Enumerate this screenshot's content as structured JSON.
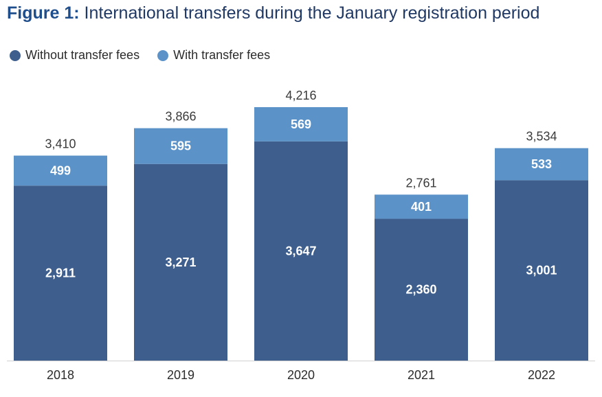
{
  "title": {
    "prefix": "Figure 1:",
    "text": "International transfers during the January registration period"
  },
  "colors": {
    "without_fees": "#3e5f8e",
    "with_fees": "#5b93c9",
    "title_accent": "#1f4e8c"
  },
  "chart_data": {
    "type": "bar",
    "stacked": true,
    "categories": [
      "2018",
      "2019",
      "2020",
      "2021",
      "2022"
    ],
    "series": [
      {
        "name": "Without transfer fees",
        "values": [
          2911,
          3271,
          3647,
          2360,
          3001
        ]
      },
      {
        "name": "With transfer fees",
        "values": [
          499,
          595,
          569,
          401,
          533
        ]
      }
    ],
    "totals": [
      3410,
      3866,
      4216,
      2761,
      3534
    ],
    "value_labels": {
      "without_fees": [
        "2,911",
        "3,271",
        "3,647",
        "2,360",
        "3,001"
      ],
      "with_fees": [
        "499",
        "595",
        "569",
        "401",
        "533"
      ],
      "totals": [
        "3,410",
        "3,866",
        "4,216",
        "2,761",
        "3,534"
      ]
    },
    "ylim": [
      0,
      4216
    ],
    "legend_position": "top-left",
    "grid": false
  }
}
